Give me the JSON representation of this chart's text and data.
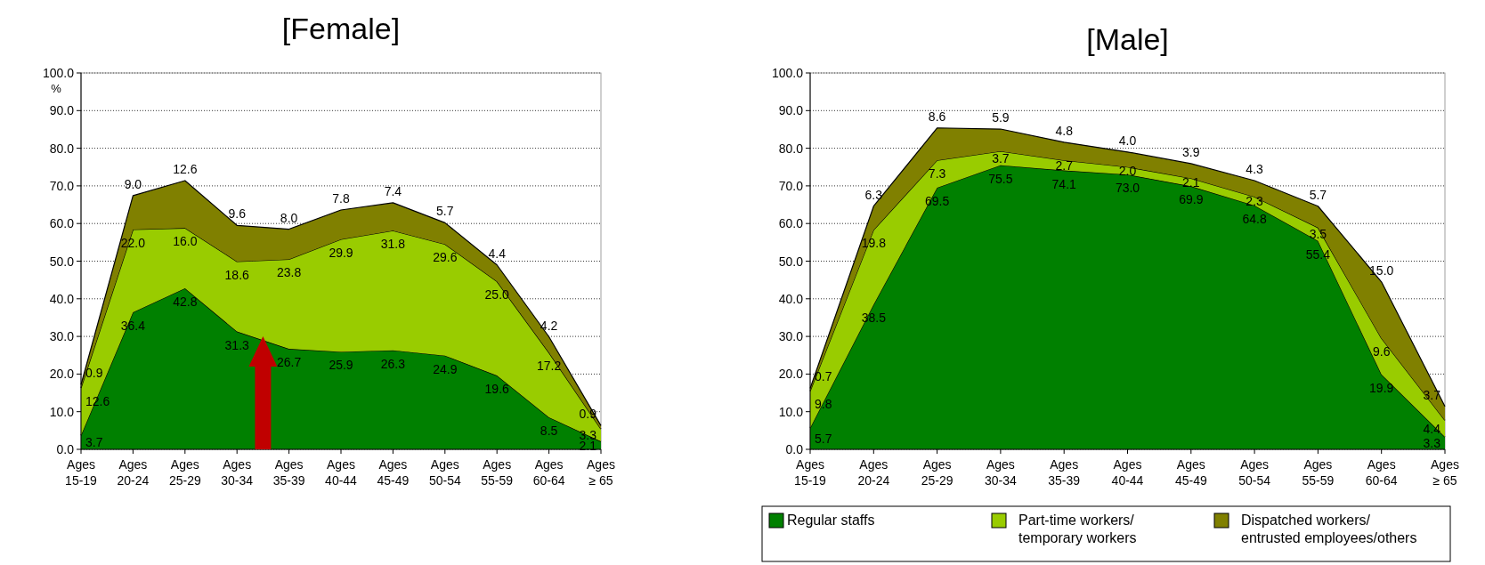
{
  "chart_data": [
    {
      "type": "area",
      "stacked": true,
      "title": "[Female]",
      "ylabel": "%",
      "categories": [
        "Ages 15-19",
        "Ages 20-24",
        "Ages 25-29",
        "Ages 30-34",
        "Ages 35-39",
        "Ages 40-44",
        "Ages 45-49",
        "Ages 50-54",
        "Ages 55-59",
        "Ages 60-64",
        "Ages ≥ 65"
      ],
      "series": [
        {
          "color": "#008000",
          "values": [
            3.7,
            36.4,
            42.8,
            31.3,
            26.7,
            25.9,
            26.3,
            24.9,
            19.6,
            8.5,
            2.1
          ],
          "value_labels": [
            "3.7",
            "36.4",
            "42.8",
            "31.3",
            "26.7",
            "25.9",
            "26.3",
            "24.9",
            "19.6",
            "8.5",
            "2.1"
          ]
        },
        {
          "color": "#99cc00",
          "values": [
            12.6,
            22.0,
            16.0,
            18.6,
            23.8,
            29.9,
            31.8,
            29.6,
            25.0,
            17.2,
            3.3
          ],
          "value_labels": [
            "12.6",
            "22.0",
            "16.0",
            "18.6",
            "23.8",
            "29.9",
            "31.8",
            "29.6",
            "25.0",
            "17.2",
            "3.3"
          ]
        },
        {
          "color": "#808000",
          "values": [
            0.9,
            9.0,
            12.6,
            9.6,
            8.0,
            7.8,
            7.4,
            5.7,
            4.4,
            4.2,
            0.9
          ],
          "value_labels": [
            "0.9",
            "9.0",
            "12.6",
            "9.6",
            "8.0",
            "7.8",
            "7.4",
            "5.7",
            "4.4",
            "4.2",
            "0.9"
          ]
        }
      ],
      "ylim": [
        0,
        100
      ],
      "yticks": [
        {
          "value": 0,
          "label": "0.0"
        },
        {
          "value": 10,
          "label": "10.0"
        },
        {
          "value": 20,
          "label": "20.0"
        },
        {
          "value": 30,
          "label": "30.0"
        },
        {
          "value": 40,
          "label": "40.0"
        },
        {
          "value": 50,
          "label": "50.0"
        },
        {
          "value": 60,
          "label": "60.0"
        },
        {
          "value": 70,
          "label": "70.0"
        },
        {
          "value": 80,
          "label": "80.0"
        },
        {
          "value": 90,
          "label": "90.0"
        },
        {
          "value": 100,
          "label": "100.0"
        }
      ],
      "grid": "y",
      "legend": false
    },
    {
      "type": "area",
      "stacked": true,
      "title": "[Male]",
      "categories": [
        "Ages 15-19",
        "Ages 20-24",
        "Ages 25-29",
        "Ages 30-34",
        "Ages 35-39",
        "Ages 40-44",
        "Ages 45-49",
        "Ages 50-54",
        "Ages 55-59",
        "Ages 60-64",
        "Ages ≥ 65"
      ],
      "series": [
        {
          "name": "Regular staffs",
          "color": "#008000",
          "values": [
            5.7,
            38.5,
            69.5,
            75.5,
            74.1,
            73.0,
            69.9,
            64.8,
            55.4,
            19.9,
            3.3
          ],
          "value_labels": [
            "5.7",
            "38.5",
            "69.5",
            "75.5",
            "74.1",
            "73.0",
            "69.9",
            "64.8",
            "55.4",
            "19.9",
            "3.3"
          ]
        },
        {
          "name": "Part-time workers/ temporary workers",
          "color": "#99cc00",
          "values": [
            9.8,
            19.8,
            7.3,
            3.7,
            2.7,
            2.0,
            2.1,
            2.3,
            3.5,
            9.6,
            4.4
          ],
          "value_labels": [
            "9.8",
            "19.8",
            "7.3",
            "3.7",
            "2.7",
            "2.0",
            "2.1",
            "2.3",
            "3.5",
            "9.6",
            "4.4"
          ]
        },
        {
          "name": "Dispatched workers/ entrusted employees/others",
          "color": "#808000",
          "values": [
            0.7,
            6.3,
            8.6,
            5.9,
            4.8,
            4.0,
            3.9,
            4.3,
            5.7,
            15.0,
            3.7
          ],
          "value_labels": [
            "0.7",
            "6.3",
            "8.6",
            "5.9",
            "4.8",
            "4.0",
            "3.9",
            "4.3",
            "5.7",
            "15.0",
            "3.7"
          ]
        }
      ],
      "ylim": [
        0,
        100
      ],
      "yticks": [
        {
          "value": 0,
          "label": "0.0"
        },
        {
          "value": 10,
          "label": "10.0"
        },
        {
          "value": 20,
          "label": "20.0"
        },
        {
          "value": 30,
          "label": "30.0"
        },
        {
          "value": 40,
          "label": "40.0"
        },
        {
          "value": 50,
          "label": "50.0"
        },
        {
          "value": 60,
          "label": "60.0"
        },
        {
          "value": 70,
          "label": "70.0"
        },
        {
          "value": 80,
          "label": "80.0"
        },
        {
          "value": 90,
          "label": "90.0"
        },
        {
          "value": 100,
          "label": "100.0"
        }
      ],
      "grid": "y",
      "legend": "bottom"
    }
  ]
}
